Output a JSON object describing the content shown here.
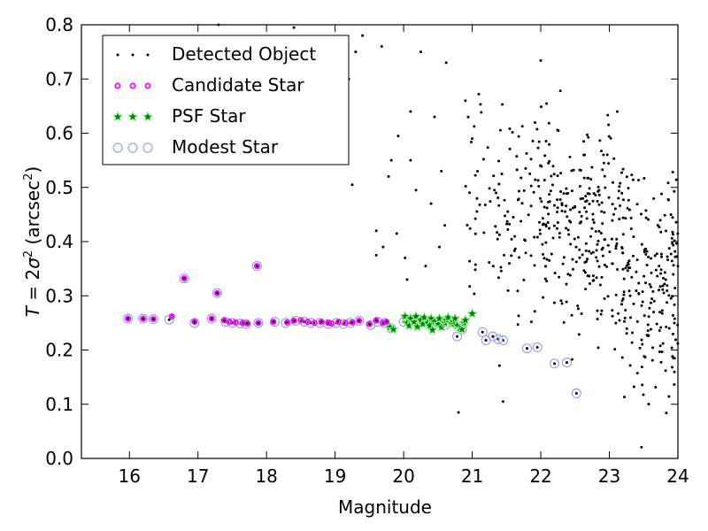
{
  "chart_data": {
    "type": "scatter",
    "xlabel": "Magnitude",
    "ylabel_parts": {
      "pre": "T",
      "eq": " = 2",
      "sigma": "σ",
      "sup": "2",
      "mid": " (arcsec",
      "sup2": "2",
      "post": ")"
    },
    "xlim": [
      15.3,
      24.0
    ],
    "ylim": [
      0.0,
      0.8
    ],
    "x_ticks": [
      16,
      17,
      18,
      19,
      20,
      21,
      22,
      23,
      24
    ],
    "y_ticks": [
      0.0,
      0.1,
      0.2,
      0.3,
      0.4,
      0.5,
      0.6,
      0.7,
      0.8
    ],
    "x_tick_labels": [
      "16",
      "17",
      "18",
      "19",
      "20",
      "21",
      "22",
      "23",
      "24"
    ],
    "y_tick_labels": [
      "0.0",
      "0.1",
      "0.2",
      "0.3",
      "0.4",
      "0.5",
      "0.6",
      "0.7",
      "0.8"
    ],
    "grid": false,
    "legend_placement": "top-left",
    "legend": [
      {
        "key": "detected",
        "label": "Detected Object",
        "color": "#000000",
        "marker": "dot"
      },
      {
        "key": "candidate",
        "label": "Candidate Star",
        "color": "#ff00ff",
        "marker": "ring"
      },
      {
        "key": "psf",
        "label": "PSF Star",
        "color": "#008000",
        "edge": "#90ee90",
        "marker": "star"
      },
      {
        "key": "modest",
        "label": "Modest Star",
        "color": "#a0a0ee",
        "marker": "circle"
      }
    ],
    "series": [
      {
        "name": "Candidate Star",
        "key": "candidate",
        "points": [
          [
            15.98,
            0.258
          ],
          [
            16.2,
            0.258
          ],
          [
            16.35,
            0.257
          ],
          [
            16.62,
            0.262
          ],
          [
            16.8,
            0.332
          ],
          [
            16.95,
            0.252
          ],
          [
            17.2,
            0.258
          ],
          [
            17.28,
            0.305
          ],
          [
            17.38,
            0.255
          ],
          [
            17.46,
            0.252
          ],
          [
            17.55,
            0.251
          ],
          [
            17.65,
            0.25
          ],
          [
            17.72,
            0.249
          ],
          [
            17.86,
            0.355
          ],
          [
            17.88,
            0.25
          ],
          [
            18.1,
            0.252
          ],
          [
            18.3,
            0.251
          ],
          [
            18.4,
            0.254
          ],
          [
            18.5,
            0.255
          ],
          [
            18.6,
            0.252
          ],
          [
            18.7,
            0.25
          ],
          [
            18.8,
            0.252
          ],
          [
            18.9,
            0.25
          ],
          [
            18.95,
            0.249
          ],
          [
            19.05,
            0.252
          ],
          [
            19.15,
            0.25
          ],
          [
            19.25,
            0.251
          ],
          [
            19.35,
            0.254
          ],
          [
            19.5,
            0.248
          ],
          [
            19.6,
            0.255
          ],
          [
            19.7,
            0.25
          ],
          [
            19.75,
            0.252
          ]
        ]
      },
      {
        "name": "Modest Star",
        "key": "modest",
        "points": [
          [
            15.98,
            0.258
          ],
          [
            16.2,
            0.258
          ],
          [
            16.35,
            0.257
          ],
          [
            16.58,
            0.256
          ],
          [
            16.8,
            0.332
          ],
          [
            16.95,
            0.25
          ],
          [
            17.2,
            0.258
          ],
          [
            17.28,
            0.305
          ],
          [
            17.4,
            0.252
          ],
          [
            17.5,
            0.25
          ],
          [
            17.62,
            0.249
          ],
          [
            17.7,
            0.248
          ],
          [
            17.86,
            0.355
          ],
          [
            17.88,
            0.25
          ],
          [
            18.12,
            0.252
          ],
          [
            18.28,
            0.25
          ],
          [
            18.42,
            0.254
          ],
          [
            18.55,
            0.252
          ],
          [
            18.65,
            0.25
          ],
          [
            18.78,
            0.25
          ],
          [
            18.9,
            0.248
          ],
          [
            19.02,
            0.25
          ],
          [
            19.12,
            0.248
          ],
          [
            19.22,
            0.25
          ],
          [
            19.35,
            0.254
          ],
          [
            19.52,
            0.246
          ],
          [
            19.62,
            0.252
          ],
          [
            19.72,
            0.25
          ],
          [
            19.82,
            0.24
          ],
          [
            20.0,
            0.252
          ],
          [
            20.2,
            0.25
          ],
          [
            20.4,
            0.25
          ],
          [
            20.6,
            0.246
          ],
          [
            20.78,
            0.225
          ],
          [
            20.85,
            0.238
          ],
          [
            21.15,
            0.233
          ],
          [
            21.2,
            0.218
          ],
          [
            21.3,
            0.225
          ],
          [
            21.38,
            0.22
          ],
          [
            21.45,
            0.218
          ],
          [
            21.8,
            0.203
          ],
          [
            21.95,
            0.205
          ],
          [
            22.2,
            0.175
          ],
          [
            22.38,
            0.177
          ],
          [
            22.52,
            0.12
          ]
        ]
      },
      {
        "name": "PSF Star",
        "key": "psf",
        "points": [
          [
            19.8,
            0.242
          ],
          [
            19.85,
            0.238
          ],
          [
            20.02,
            0.262
          ],
          [
            20.05,
            0.25
          ],
          [
            20.08,
            0.245
          ],
          [
            20.1,
            0.258
          ],
          [
            20.15,
            0.252
          ],
          [
            20.18,
            0.262
          ],
          [
            20.2,
            0.243
          ],
          [
            20.25,
            0.255
          ],
          [
            20.28,
            0.248
          ],
          [
            20.3,
            0.26
          ],
          [
            20.35,
            0.25
          ],
          [
            20.38,
            0.245
          ],
          [
            20.4,
            0.258
          ],
          [
            20.42,
            0.237
          ],
          [
            20.45,
            0.252
          ],
          [
            20.5,
            0.248
          ],
          [
            20.52,
            0.258
          ],
          [
            20.55,
            0.242
          ],
          [
            20.6,
            0.25
          ],
          [
            20.62,
            0.255
          ],
          [
            20.65,
            0.26
          ],
          [
            20.7,
            0.248
          ],
          [
            20.72,
            0.252
          ],
          [
            20.75,
            0.258
          ],
          [
            20.78,
            0.245
          ],
          [
            20.82,
            0.24
          ],
          [
            20.85,
            0.238
          ],
          [
            20.88,
            0.25
          ],
          [
            20.9,
            0.255
          ],
          [
            21.0,
            0.267
          ]
        ]
      }
    ],
    "detected_object_scatter": {
      "name": "Detected Object",
      "key": "detected",
      "count": 560,
      "bright_count": 42,
      "x_range": [
        20.9,
        24.0
      ],
      "y_range": [
        0.01,
        0.8
      ]
    },
    "extra_detected": [
      [
        17.3,
        0.8
      ],
      [
        18.4,
        0.795
      ],
      [
        19.1,
        0.67
      ],
      [
        19.2,
        0.7
      ],
      [
        19.3,
        0.75
      ],
      [
        19.15,
        0.65
      ],
      [
        19.25,
        0.505
      ],
      [
        19.6,
        0.375
      ],
      [
        19.78,
        0.52
      ],
      [
        19.92,
        0.595
      ],
      [
        20.02,
        0.37
      ],
      [
        20.05,
        0.33
      ],
      [
        20.1,
        0.55
      ],
      [
        19.7,
        0.39
      ],
      [
        20.32,
        0.355
      ],
      [
        19.6,
        0.42
      ],
      [
        19.9,
        0.415
      ],
      [
        20.25,
        0.75
      ],
      [
        20.5,
        0.82
      ],
      [
        20.62,
        0.73
      ],
      [
        20.45,
        0.63
      ],
      [
        20.18,
        0.495
      ],
      [
        20.1,
        0.64
      ],
      [
        20.55,
        0.53
      ],
      [
        20.6,
        0.43
      ],
      [
        20.8,
        0.085
      ],
      [
        21.0,
        0.59
      ],
      [
        20.9,
        0.66
      ],
      [
        21.45,
        0.105
      ],
      [
        19.82,
        0.55
      ],
      [
        20.4,
        0.47
      ],
      [
        20.52,
        0.39
      ],
      [
        19.68,
        0.76
      ],
      [
        19.4,
        0.78
      ]
    ]
  }
}
